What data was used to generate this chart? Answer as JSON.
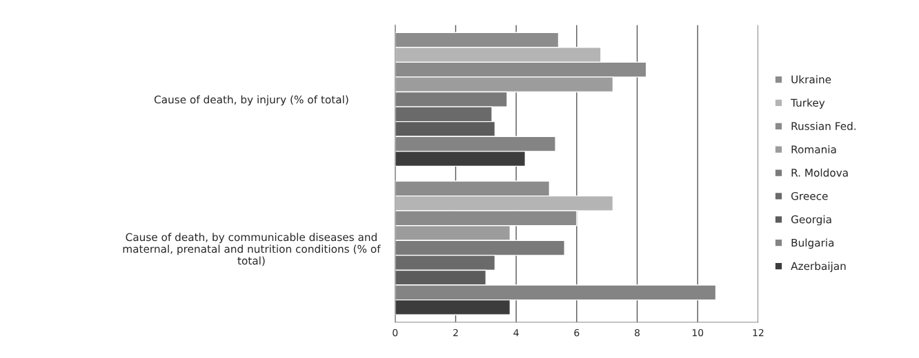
{
  "chart_data": {
    "type": "bar",
    "orientation": "horizontal",
    "categories": [
      "Cause of death, by injury (% of total)",
      "Cause of death, by communicable diseases and\nmaternal, prenatal and nutrition conditions (% of\ntotal)"
    ],
    "series": [
      {
        "name": "Ukraine",
        "color": "#8c8c8c",
        "values": [
          5.4,
          5.1
        ]
      },
      {
        "name": "Turkey",
        "color": "#b4b4b4",
        "values": [
          6.8,
          7.2
        ]
      },
      {
        "name": "Russian Fed.",
        "color": "#8a8a8a",
        "values": [
          8.3,
          6.0
        ]
      },
      {
        "name": "Romania",
        "color": "#9c9c9c",
        "values": [
          7.2,
          3.8
        ]
      },
      {
        "name": "R. Moldova",
        "color": "#7a7a7a",
        "values": [
          3.7,
          5.6
        ]
      },
      {
        "name": "Greece",
        "color": "#6a6a6a",
        "values": [
          3.2,
          3.3
        ]
      },
      {
        "name": "Georgia",
        "color": "#5c5c5c",
        "values": [
          3.3,
          3.0
        ]
      },
      {
        "name": "Bulgaria",
        "color": "#848484",
        "values": [
          5.3,
          10.6
        ]
      },
      {
        "name": "Azerbaijan",
        "color": "#3c3c3c",
        "values": [
          4.3,
          3.8
        ]
      }
    ],
    "xlim": [
      0,
      12
    ],
    "xticks": [
      0,
      2,
      4,
      6,
      8,
      10,
      12
    ],
    "grid": "x",
    "legend": "right"
  }
}
